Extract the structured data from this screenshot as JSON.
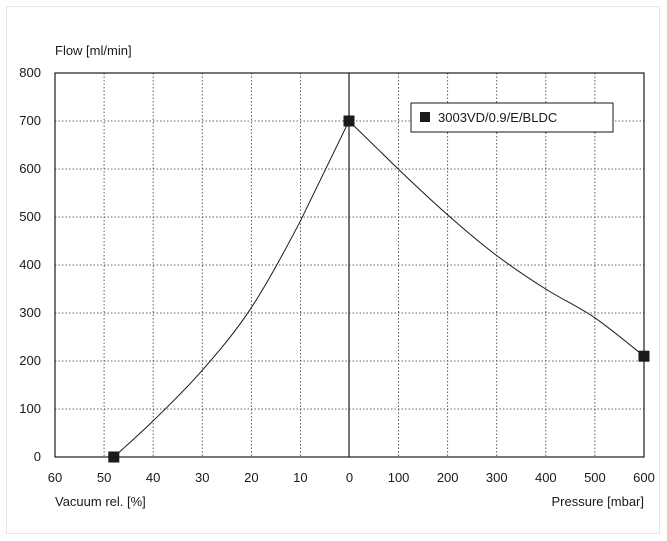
{
  "chart_data": {
    "type": "line",
    "ylabel": "Flow [ml/min]",
    "xlabel_left": "Vacuum rel. [%]",
    "xlabel_right": "Pressure [mbar]",
    "ylim": [
      0,
      800
    ],
    "y_ticks": [
      "0",
      "100",
      "200",
      "300",
      "400",
      "500",
      "600",
      "700",
      "800"
    ],
    "x_tick_labels": [
      "60",
      "50",
      "40",
      "30",
      "20",
      "10",
      "0",
      "100",
      "200",
      "300",
      "400",
      "500",
      "600"
    ],
    "grid": true,
    "legend_position": "top-right",
    "series": [
      {
        "name": "3003VD/0.9/E/BLDC",
        "color": "#1a1a1a",
        "points": [
          {
            "side": "vacuum",
            "x": 48,
            "y": 0
          },
          {
            "side": "vacuum",
            "x": 40,
            "y": 75
          },
          {
            "side": "vacuum",
            "x": 30,
            "y": 180
          },
          {
            "side": "vacuum",
            "x": 20,
            "y": 310
          },
          {
            "side": "vacuum",
            "x": 10,
            "y": 490
          },
          {
            "side": "vacuum",
            "x": 0,
            "y": 700
          },
          {
            "side": "pressure",
            "x": 100,
            "y": 600
          },
          {
            "side": "pressure",
            "x": 200,
            "y": 505
          },
          {
            "side": "pressure",
            "x": 300,
            "y": 420
          },
          {
            "side": "pressure",
            "x": 400,
            "y": 350
          },
          {
            "side": "pressure",
            "x": 500,
            "y": 290
          },
          {
            "side": "pressure",
            "x": 600,
            "y": 210
          }
        ],
        "markers": [
          {
            "side": "vacuum",
            "x": 48,
            "y": 0
          },
          {
            "side": "vacuum",
            "x": 0,
            "y": 700
          },
          {
            "side": "pressure",
            "x": 600,
            "y": 210
          }
        ]
      }
    ]
  }
}
